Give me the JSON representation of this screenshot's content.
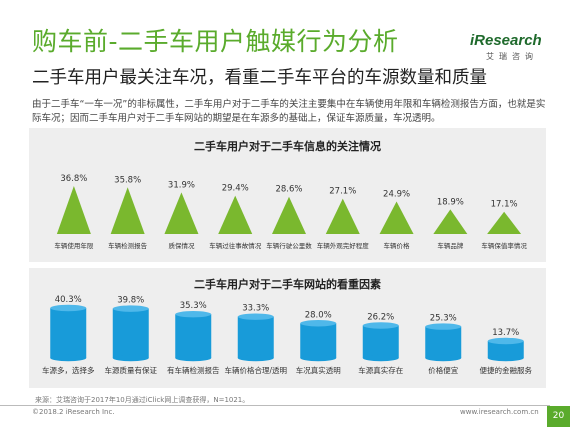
{
  "page": {
    "title": "购车前-二手车用户触媒行为分析",
    "subtitle": "二手车用户最关注车况，看重二手车平台的车源数量和质量",
    "description": "由于二手车“一车一况”的非标属性，二手车用户对于二手车的关注主要集中在车辆使用年限和车辆检测报告方面，也就是实际车况；因而二手车用户对于二手车网站的期望是在车源多的基础上，保证车源质量，车况透明。",
    "logo": {
      "main": "iResearch",
      "sub": "艾瑞咨询"
    },
    "source": "来源：艾瑞咨询于2017年10月通过iClick网上调查获得，N=1021。",
    "copyright": "©2018.2 iResearch Inc.",
    "url": "www.iresearch.com.cn",
    "page_number": "20"
  },
  "colors": {
    "brand_green": "#5aab2c",
    "triangle_green": "#7ab82e",
    "bar_blue": "#189bd9",
    "panel_bg": "#eeeeee"
  },
  "chart_data": [
    {
      "type": "bar",
      "title": "二手车用户对于二手车信息的关注情况",
      "categories": [
        "车辆使用年限",
        "车辆检测报告",
        "质保情况",
        "车辆过往事故情况",
        "车辆行驶公里数",
        "车辆外观完好程度",
        "车辆价格",
        "车辆品牌",
        "车辆保值率情况"
      ],
      "values": [
        36.8,
        35.8,
        31.9,
        29.4,
        28.6,
        27.1,
        24.9,
        18.9,
        17.1
      ],
      "value_labels": [
        "36.8%",
        "35.8%",
        "31.9%",
        "29.4%",
        "28.6%",
        "27.1%",
        "24.9%",
        "18.9%",
        "17.1%"
      ],
      "mark": "triangle",
      "unit": "%",
      "grid": false
    },
    {
      "type": "bar",
      "title": "二手车用户对于二手车网站的看重因素",
      "categories": [
        "车源多，选择多",
        "车源质量有保证",
        "有车辆检测报告",
        "车辆价格合理/透明",
        "车况真实透明",
        "车源真实存在",
        "价格便宜",
        "便捷的金融服务"
      ],
      "values": [
        40.3,
        39.8,
        35.3,
        33.3,
        28.0,
        26.2,
        25.3,
        13.7
      ],
      "value_labels": [
        "40.3%",
        "39.8%",
        "35.3%",
        "33.3%",
        "28.0%",
        "26.2%",
        "25.3%",
        "13.7%"
      ],
      "mark": "cylinder",
      "unit": "%",
      "grid": false
    }
  ]
}
